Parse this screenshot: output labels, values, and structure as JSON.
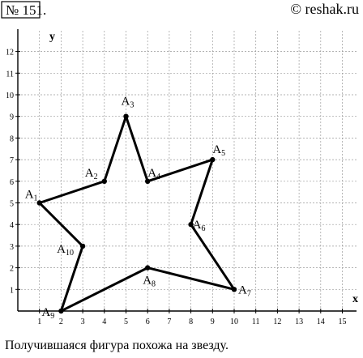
{
  "header": {
    "problem_number": "№ 151.",
    "watermark": "© reshak.ru"
  },
  "caption": "Получившаяся фигура похожа на звезду.",
  "axes": {
    "x_label": "x",
    "y_label": "y",
    "x_ticks": [
      1,
      2,
      3,
      4,
      5,
      6,
      7,
      8,
      9,
      10,
      11,
      12,
      13,
      14,
      15
    ],
    "y_ticks": [
      1,
      2,
      3,
      4,
      5,
      6,
      7,
      8,
      9,
      10,
      11,
      12
    ]
  },
  "points": [
    {
      "letter": "A",
      "index": "1",
      "x": 1,
      "y": 5
    },
    {
      "letter": "A",
      "index": "2",
      "x": 4,
      "y": 6
    },
    {
      "letter": "A",
      "index": "3",
      "x": 5,
      "y": 9
    },
    {
      "letter": "A",
      "index": "4",
      "x": 6,
      "y": 6
    },
    {
      "letter": "A",
      "index": "5",
      "x": 9,
      "y": 7
    },
    {
      "letter": "A",
      "index": "6",
      "x": 8,
      "y": 4
    },
    {
      "letter": "A",
      "index": "7",
      "x": 10,
      "y": 1
    },
    {
      "letter": "A",
      "index": "8",
      "x": 6,
      "y": 2
    },
    {
      "letter": "A",
      "index": "9",
      "x": 2,
      "y": 0
    },
    {
      "letter": "A",
      "index": "10",
      "x": 3,
      "y": 3
    }
  ]
}
